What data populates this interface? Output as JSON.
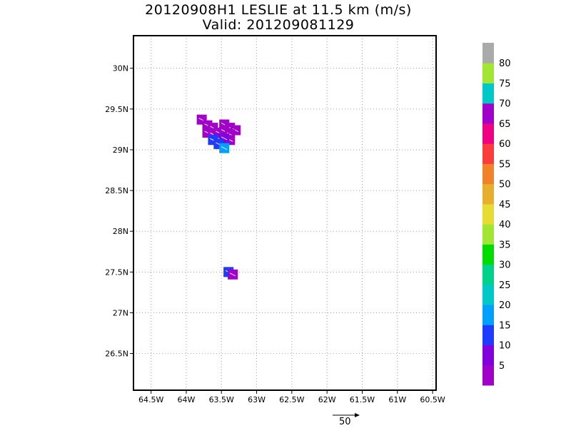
{
  "title_line1": "20120908H1 LESLIE at 11.5 km (m/s)",
  "title_line2": "Valid: 201209081129",
  "map": {
    "lon_range": [
      -64.75,
      -60.45
    ],
    "lat_range": [
      26.05,
      30.4
    ],
    "lon_ticks": [
      -64.5,
      -64,
      -63.5,
      -63,
      -62.5,
      -62,
      -61.5,
      -61,
      -60.5
    ],
    "lon_tick_labels": [
      "64.5W",
      "64W",
      "63.5W",
      "63W",
      "62.5W",
      "62W",
      "61.5W",
      "61W",
      "60.5W"
    ],
    "lat_ticks": [
      26.5,
      27,
      27.5,
      28,
      28.5,
      29,
      29.5,
      30
    ],
    "lat_tick_labels": [
      "26.5N",
      "27N",
      "27.5N",
      "28N",
      "28.5N",
      "29N",
      "29.5N",
      "30N"
    ],
    "grid": "dotted"
  },
  "colorbar": {
    "colors": [
      "#a000c8",
      "#8200dc",
      "#1e3cff",
      "#00a0ff",
      "#00c8c8",
      "#00d28c",
      "#00dc00",
      "#a0e632",
      "#e6dc32",
      "#e6af2d",
      "#f08228",
      "#fa3c3c",
      "#f00082",
      "#a000c8",
      "#00c8c8",
      "#a0e632",
      "#aaaaaa"
    ],
    "labels": [
      "5",
      "10",
      "15",
      "20",
      "25",
      "30",
      "35",
      "40",
      "45",
      "50",
      "55",
      "60",
      "65",
      "70",
      "75",
      "80"
    ]
  },
  "observations": [
    {
      "lon": -63.78,
      "lat": 29.37,
      "color": "#a000c8"
    },
    {
      "lon": -63.7,
      "lat": 29.3,
      "color": "#a000c8"
    },
    {
      "lon": -63.62,
      "lat": 29.27,
      "color": "#a000c8"
    },
    {
      "lon": -63.46,
      "lat": 29.31,
      "color": "#a000c8"
    },
    {
      "lon": -63.38,
      "lat": 29.27,
      "color": "#a000c8"
    },
    {
      "lon": -63.3,
      "lat": 29.24,
      "color": "#a000c8"
    },
    {
      "lon": -63.7,
      "lat": 29.21,
      "color": "#a000c8"
    },
    {
      "lon": -63.62,
      "lat": 29.19,
      "color": "#a000c8"
    },
    {
      "lon": -63.54,
      "lat": 29.21,
      "color": "#a000c8"
    },
    {
      "lon": -63.46,
      "lat": 29.23,
      "color": "#a000c8"
    },
    {
      "lon": -63.38,
      "lat": 29.19,
      "color": "#a000c8"
    },
    {
      "lon": -63.38,
      "lat": 29.12,
      "color": "#a000c8"
    },
    {
      "lon": -63.54,
      "lat": 29.14,
      "color": "#8200dc"
    },
    {
      "lon": -63.46,
      "lat": 29.14,
      "color": "#8200dc"
    },
    {
      "lon": -63.62,
      "lat": 29.12,
      "color": "#1e3cff"
    },
    {
      "lon": -63.54,
      "lat": 29.07,
      "color": "#1e3cff"
    },
    {
      "lon": -63.46,
      "lat": 29.02,
      "color": "#00a0ff"
    },
    {
      "lon": -63.4,
      "lat": 27.5,
      "color": "#1e3cff"
    },
    {
      "lon": -63.34,
      "lat": 27.47,
      "color": "#a000c8"
    }
  ],
  "reference_vector": {
    "label": "50"
  }
}
